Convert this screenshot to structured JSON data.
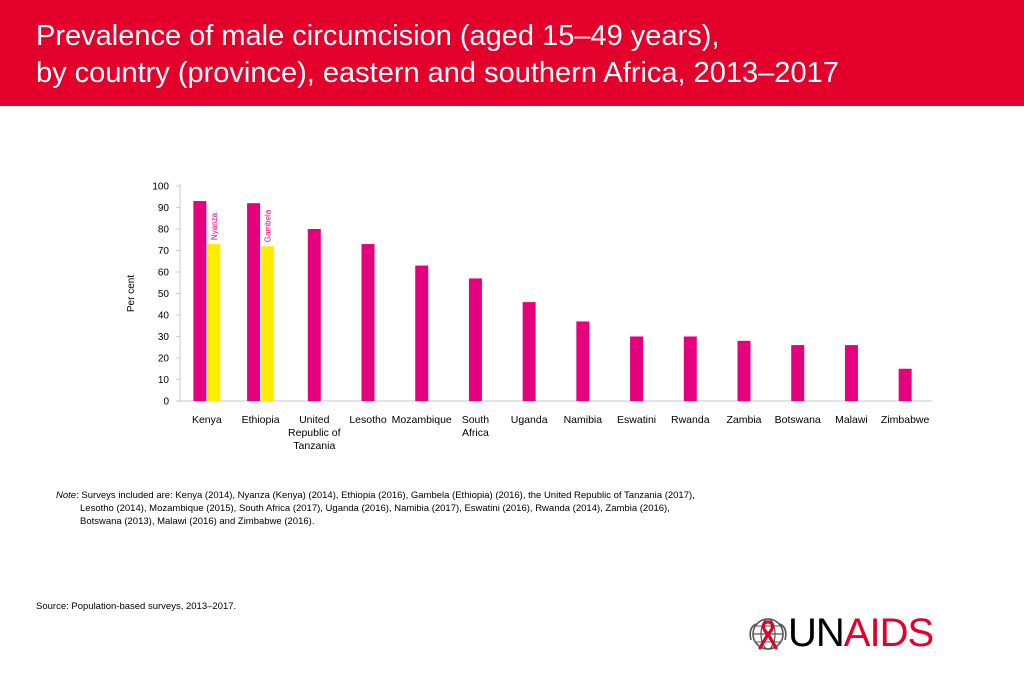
{
  "header": {
    "title_line1": "Prevalence of male circumcision (aged 15–49 years),",
    "title_line2": "by country (province), eastern and southern Africa, 2013–2017"
  },
  "colors": {
    "header": "#e3002b",
    "bar_primary": "#e6007e",
    "bar_secondary": "#ffed00"
  },
  "chart_data": {
    "type": "bar",
    "ylabel": "Per cent",
    "ylim": [
      0,
      100
    ],
    "yticks": [
      0,
      10,
      20,
      30,
      40,
      50,
      60,
      70,
      80,
      90,
      100
    ],
    "grid": false,
    "categories": [
      [
        "Kenya"
      ],
      [
        "Ethiopia"
      ],
      [
        "United",
        "Republic of",
        "Tanzania"
      ],
      [
        "Lesotho"
      ],
      [
        "Mozambique"
      ],
      [
        "South",
        "Africa"
      ],
      [
        "Uganda"
      ],
      [
        "Namibia"
      ],
      [
        "Eswatini"
      ],
      [
        "Rwanda"
      ],
      [
        "Zambia"
      ],
      [
        "Botswana"
      ],
      [
        "Malawi"
      ],
      [
        "Zimbabwe"
      ]
    ],
    "values": [
      93,
      92,
      80,
      73,
      63,
      57,
      46,
      37,
      30,
      30,
      28,
      26,
      26,
      15
    ],
    "subnational": [
      {
        "category_index": 0,
        "name": "Nyanza",
        "value": 73
      },
      {
        "category_index": 1,
        "name": "Gambela",
        "value": 72
      }
    ]
  },
  "note": {
    "label": "Note",
    "line1": ": Surveys included are: Kenya (2014), Nyanza (Kenya) (2014), Ethiopia (2016), Gambela (Ethiopia) (2016), the United Republic of Tanzania (2017),",
    "line2": "Lesotho (2014), Mozambique (2015), South Africa (2017), Uganda (2016), Namibia (2017), Eswatini (2016), Rwanda (2014), Zambia (2016),",
    "line3": "Botswana (2013), Malawi (2016) and Zimbabwe (2016)."
  },
  "source": {
    "label": "Source:",
    "text": " Population-based surveys, 2013–2017."
  },
  "logo": {
    "part1": "UN",
    "part2": "AIDS",
    "icon": "ribbon-globe-icon"
  }
}
